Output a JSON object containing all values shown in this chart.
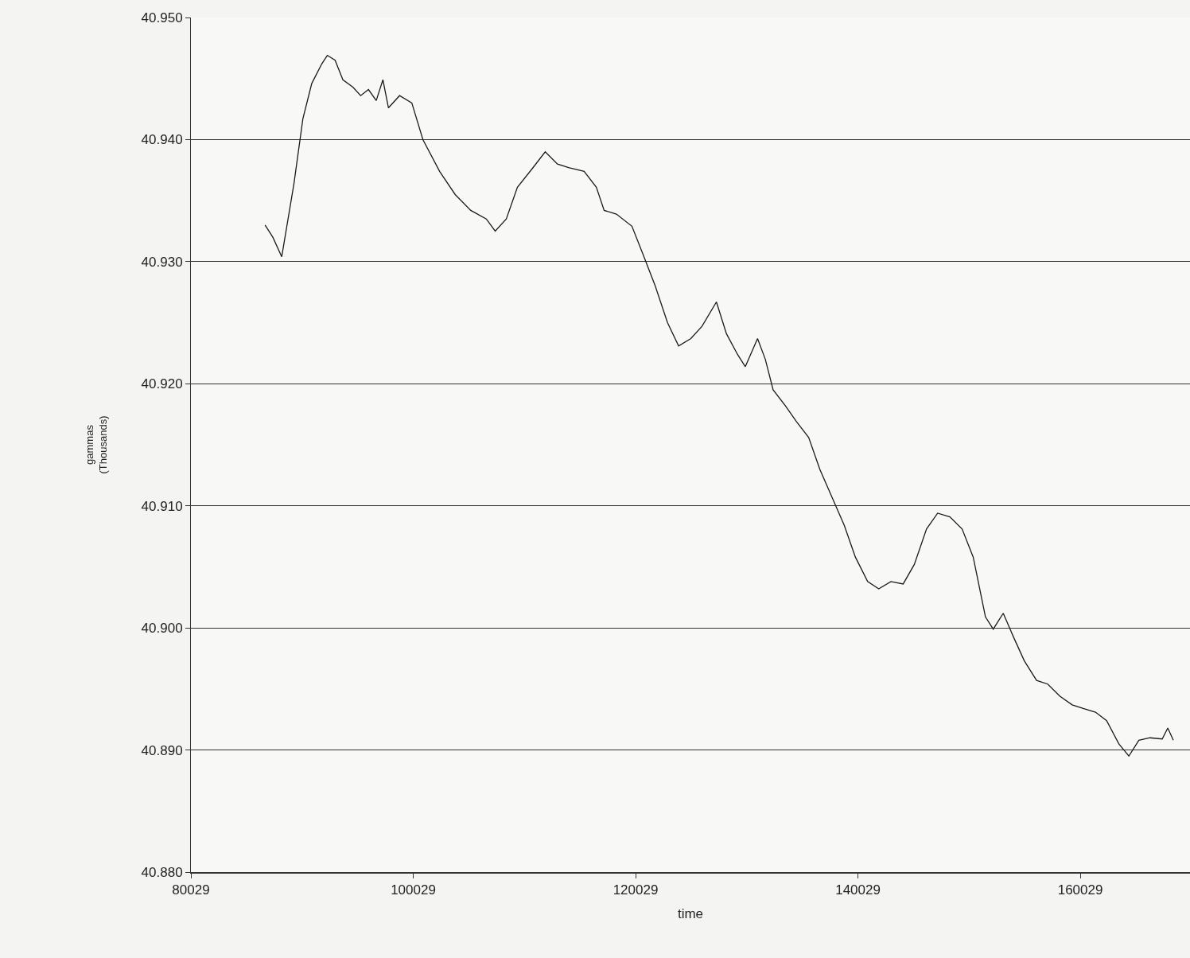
{
  "chart_data": {
    "type": "line",
    "xlabel": "time",
    "ylabel": "gammas\n(Thousands)",
    "x": [
      86700,
      87400,
      88200,
      89300,
      90100,
      90900,
      91800,
      92300,
      93000,
      93700,
      94600,
      95300,
      96000,
      96700,
      97300,
      97800,
      98800,
      99900,
      100900,
      102400,
      103800,
      105200,
      106600,
      107400,
      108400,
      109400,
      110800,
      111900,
      113000,
      114000,
      115400,
      116500,
      117200,
      118300,
      119700,
      120700,
      121800,
      122900,
      123900,
      125000,
      126000,
      127300,
      128200,
      129200,
      129900,
      131000,
      131700,
      132400,
      133500,
      134500,
      135600,
      136600,
      137700,
      138800,
      139800,
      140900,
      141900,
      143000,
      144100,
      145100,
      146200,
      147200,
      148300,
      149400,
      150400,
      151500,
      152200,
      153100,
      154000,
      155000,
      156100,
      157100,
      158200,
      159300,
      160300,
      161400,
      162400,
      163500,
      164400,
      165300,
      166300,
      167400,
      167900,
      168400
    ],
    "series": [
      {
        "color": "#1a1a1a",
        "values": [
          40.933,
          40.932,
          40.9304,
          40.9364,
          40.9417,
          40.9446,
          40.9462,
          40.9469,
          40.9465,
          40.9449,
          40.9443,
          40.9436,
          40.9441,
          40.9432,
          40.9449,
          40.9426,
          40.9436,
          40.943,
          40.94,
          40.9374,
          40.9355,
          40.9342,
          40.9335,
          40.9325,
          40.9335,
          40.9361,
          40.9377,
          40.939,
          40.938,
          40.9377,
          40.9374,
          40.9361,
          40.9342,
          40.9339,
          40.9329,
          40.9306,
          40.928,
          40.925,
          40.9231,
          40.9237,
          40.9247,
          40.9267,
          40.9241,
          40.9224,
          40.9214,
          40.9237,
          40.922,
          40.9195,
          40.9182,
          40.9169,
          40.9156,
          40.913,
          40.9107,
          40.9084,
          40.9058,
          40.9038,
          40.9032,
          40.9038,
          40.9036,
          40.9052,
          40.9081,
          40.9094,
          40.9091,
          40.9081,
          40.9058,
          40.9009,
          40.8999,
          40.9012,
          40.8993,
          40.8973,
          40.8957,
          40.8954,
          40.8944,
          40.8937,
          40.8934,
          40.8931,
          40.8924,
          40.8905,
          40.8895,
          40.8908,
          40.891,
          40.8909,
          40.8918,
          40.8908
        ]
      }
    ],
    "xlim": [
      80029,
      169900
    ],
    "xticks": [
      80029,
      100029,
      120029,
      140029,
      160029
    ],
    "ylim": [
      40.88,
      40.95
    ],
    "yticks": [
      {
        "value": 40.88,
        "label": "40.880"
      },
      {
        "value": 40.89,
        "label": "40.890"
      },
      {
        "value": 40.9,
        "label": "40.900"
      },
      {
        "value": 40.91,
        "label": "40.910"
      },
      {
        "value": 40.92,
        "label": "40.920"
      },
      {
        "value": 40.93,
        "label": "40.930"
      },
      {
        "value": 40.94,
        "label": "40.940"
      },
      {
        "value": 40.95,
        "label": "40.950"
      }
    ],
    "grid": "y",
    "legend": false,
    "marker": "none",
    "line_style": "solid"
  }
}
